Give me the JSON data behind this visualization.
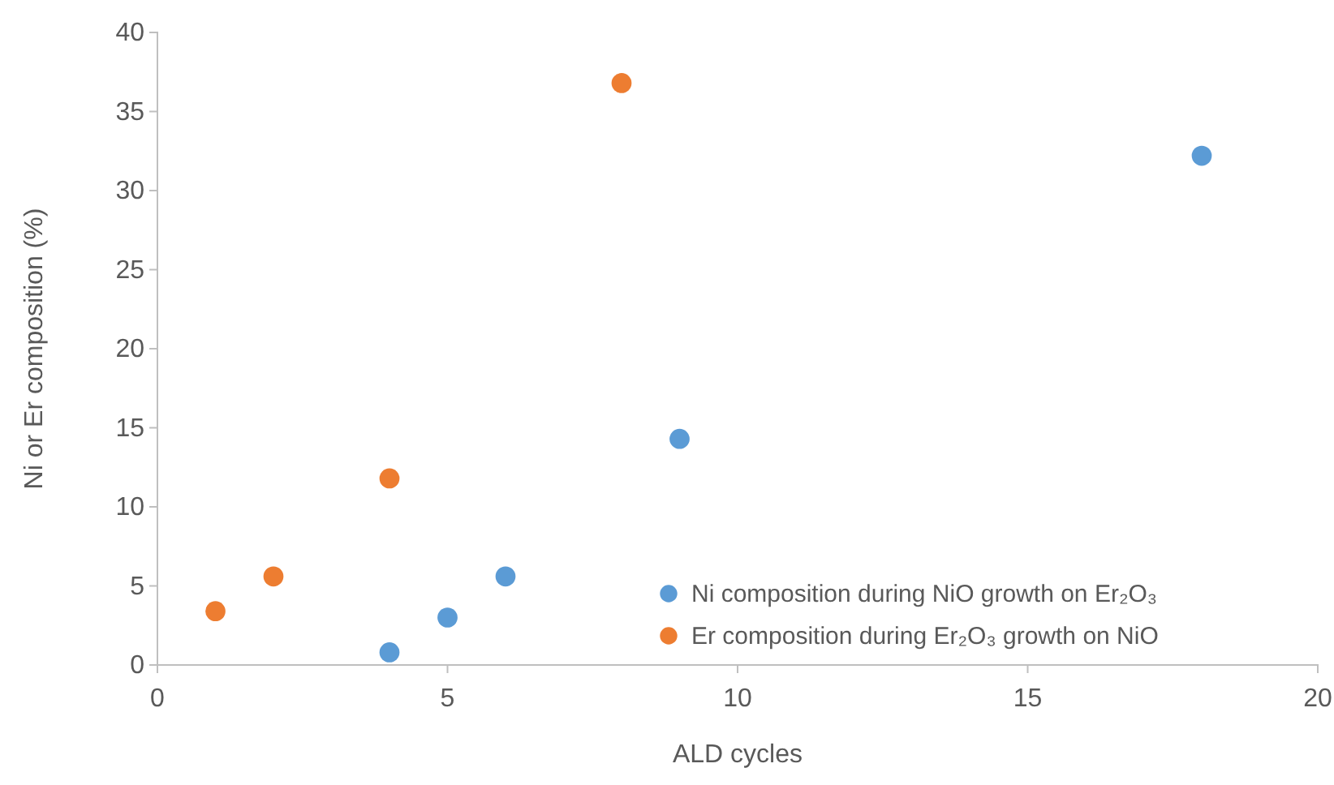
{
  "chart_data": {
    "type": "scatter",
    "xlabel": "ALD cycles",
    "ylabel": "Ni or Er composition (%)",
    "xlim": [
      0,
      20
    ],
    "xticks": [
      0,
      5,
      10,
      15,
      20
    ],
    "ylim": [
      0,
      40
    ],
    "yticks": [
      0,
      5,
      10,
      15,
      20,
      25,
      30,
      35,
      40
    ],
    "grid": false,
    "legend": "bottom right",
    "marker": "circle",
    "series": [
      {
        "name": "Ni composition during NiO growth on Er₂O₃",
        "color": "#5b9bd5",
        "x": [
          4,
          5,
          6,
          9,
          18
        ],
        "values": [
          0.8,
          3.0,
          5.6,
          14.3,
          32.2
        ]
      },
      {
        "name": "Er composition during Er₂O₃ growth on NiO",
        "color": "#ed7d31",
        "x": [
          1,
          2,
          4,
          8
        ],
        "values": [
          3.4,
          5.6,
          11.8,
          36.8
        ]
      }
    ]
  }
}
